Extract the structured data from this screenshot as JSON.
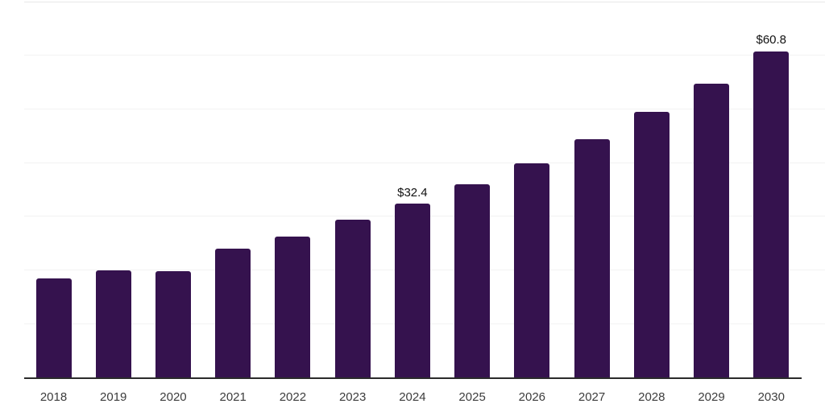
{
  "page": {
    "background": "#ffffff"
  },
  "chart_data": {
    "type": "bar",
    "title": "",
    "xlabel": "",
    "ylabel": "",
    "categories": [
      "2018",
      "2019",
      "2020",
      "2021",
      "2022",
      "2023",
      "2024",
      "2025",
      "2026",
      "2027",
      "2028",
      "2029",
      "2030"
    ],
    "values": [
      18.5,
      20.1,
      19.9,
      24.1,
      26.4,
      29.4,
      32.4,
      36.0,
      40.0,
      44.5,
      49.5,
      54.8,
      60.8
    ],
    "data_labels": {
      "2024": "$32.4",
      "2030": "$60.8"
    },
    "value_prefix": "$",
    "ylim": [
      0,
      70
    ],
    "gridline_step": 10,
    "grid": "horizontal",
    "y_tick_labels_visible": false,
    "legend_position": "none",
    "colors": {
      "bar": "#35124e",
      "gridline": "#f2f2f2",
      "plot_top_border": "#e7e7e7",
      "axis_line": "#2b2b2b",
      "tick_label": "#3c3c3c",
      "data_label": "#111111",
      "background": "#ffffff"
    }
  }
}
